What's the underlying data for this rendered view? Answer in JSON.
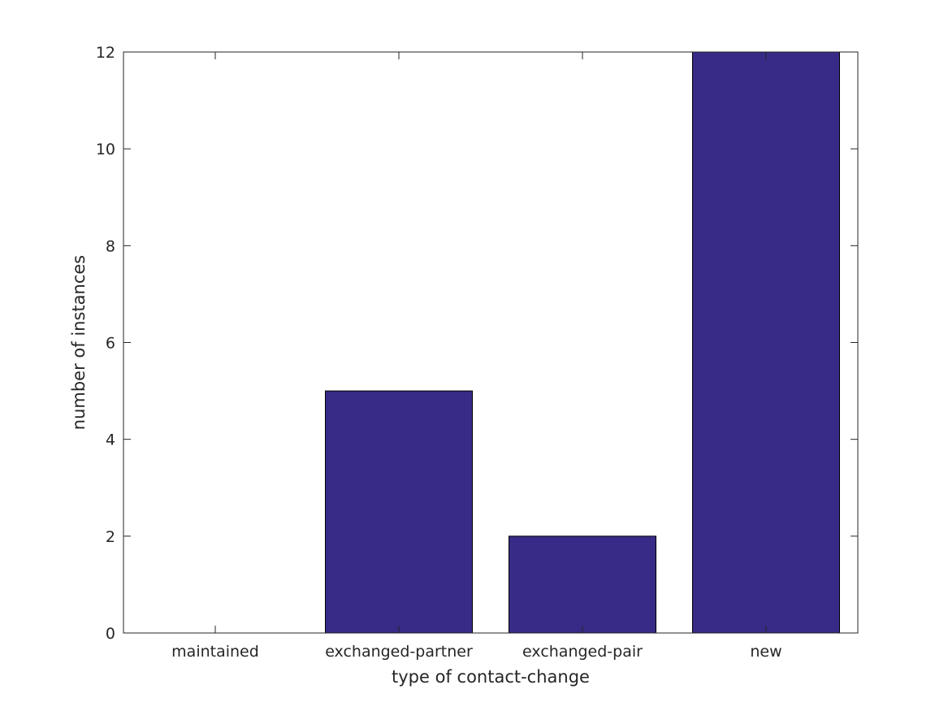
{
  "chart_data": {
    "type": "bar",
    "categories": [
      "maintained",
      "exchanged-partner",
      "exchanged-pair",
      "new"
    ],
    "values": [
      0,
      5,
      2,
      12
    ],
    "title": "",
    "xlabel": "type of contact-change",
    "ylabel": "number of instances",
    "ylim": [
      0,
      12
    ],
    "yticks": [
      "0",
      "2",
      "4",
      "6",
      "8",
      "10",
      "12"
    ],
    "grid": false,
    "legend": "none",
    "bar_color": "#372b87",
    "edge_color": "#000000"
  }
}
